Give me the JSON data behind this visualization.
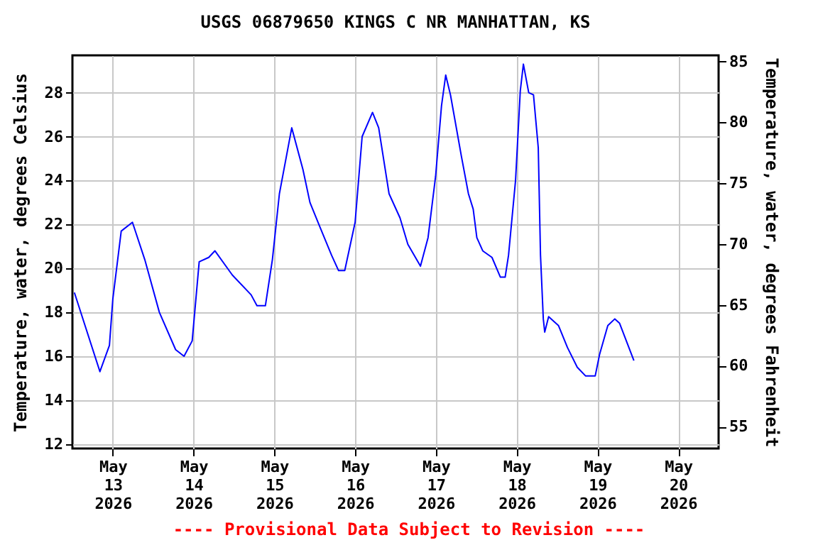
{
  "chart_data": {
    "type": "line",
    "title": "USGS 06879650 KINGS C NR MANHATTAN, KS",
    "ylabel": "Temperature, water, degrees Celsius",
    "y2label": "Temperature, water, degrees Fahrenheit",
    "annotations": [
      "---- Provisional Data Subject to Revision ----"
    ],
    "x": [
      "2026-05-12T12:35",
      "2026-05-12T20:10",
      "2026-05-12T23:00",
      "2026-05-13T00:00",
      "2026-05-13T02:30",
      "2026-05-13T05:50",
      "2026-05-13T09:30",
      "2026-05-13T13:50",
      "2026-05-13T18:40",
      "2026-05-13T21:10",
      "2026-05-13T23:35",
      "2026-05-14T01:40",
      "2026-05-14T04:30",
      "2026-05-14T06:20",
      "2026-05-14T11:30",
      "2026-05-14T17:05",
      "2026-05-14T18:50",
      "2026-05-14T21:20",
      "2026-05-14T23:25",
      "2026-05-15T01:30",
      "2026-05-15T05:10",
      "2026-05-15T08:30",
      "2026-05-15T10:35",
      "2026-05-15T13:30",
      "2026-05-15T17:00",
      "2026-05-15T19:05",
      "2026-05-15T20:55",
      "2026-05-16T00:00",
      "2026-05-16T02:05",
      "2026-05-16T05:10",
      "2026-05-16T07:00",
      "2026-05-16T10:05",
      "2026-05-16T13:20",
      "2026-05-16T15:40",
      "2026-05-16T19:25",
      "2026-05-16T21:40",
      "2026-05-16T23:55",
      "2026-05-17T01:40",
      "2026-05-17T02:55",
      "2026-05-17T04:20",
      "2026-05-17T07:35",
      "2026-05-17T09:40",
      "2026-05-17T11:05",
      "2026-05-17T12:10",
      "2026-05-17T13:55",
      "2026-05-17T16:40",
      "2026-05-17T19:10",
      "2026-05-17T20:35",
      "2026-05-17T21:35",
      "2026-05-17T23:40",
      "2026-05-18T01:05",
      "2026-05-18T02:00",
      "2026-05-18T03:35",
      "2026-05-18T05:00",
      "2026-05-18T06:25",
      "2026-05-18T07:05",
      "2026-05-18T07:55",
      "2026-05-18T08:20",
      "2026-05-18T09:30",
      "2026-05-18T12:25",
      "2026-05-18T15:05",
      "2026-05-18T18:00",
      "2026-05-18T20:30",
      "2026-05-18T23:20",
      "2026-05-19T00:40",
      "2026-05-19T03:05",
      "2026-05-19T05:10",
      "2026-05-19T06:35",
      "2026-05-19T10:50"
    ],
    "series": [
      {
        "color": "#0000ff",
        "values": [
          18.9,
          15.3,
          16.5,
          18.6,
          21.7,
          22.1,
          20.4,
          18.0,
          16.3,
          16.0,
          16.7,
          20.3,
          20.5,
          20.8,
          19.7,
          18.8,
          18.3,
          18.3,
          20.4,
          23.4,
          26.4,
          24.5,
          23.0,
          21.9,
          20.6,
          19.9,
          19.9,
          22.1,
          26.0,
          27.1,
          26.4,
          23.4,
          22.3,
          21.1,
          20.1,
          21.4,
          24.2,
          27.4,
          28.8,
          27.9,
          25.1,
          23.4,
          22.7,
          21.4,
          20.8,
          20.5,
          19.6,
          19.6,
          20.6,
          24.0,
          28.1,
          29.3,
          28.0,
          27.9,
          25.5,
          20.6,
          17.7,
          17.1,
          17.8,
          17.4,
          16.4,
          15.5,
          15.1,
          15.1,
          16.1,
          17.4,
          17.7,
          17.5,
          15.8
        ]
      }
    ],
    "xlim": [
      "2026-05-12T12:00",
      "2026-05-20T12:00"
    ],
    "xticks": [
      {
        "value": "2026-05-13",
        "label": "May 13 2026"
      },
      {
        "value": "2026-05-14",
        "label": "May 14 2026"
      },
      {
        "value": "2026-05-15",
        "label": "May 15 2026"
      },
      {
        "value": "2026-05-16",
        "label": "May 16 2026"
      },
      {
        "value": "2026-05-17",
        "label": "May 17 2026"
      },
      {
        "value": "2026-05-18",
        "label": "May 18 2026"
      },
      {
        "value": "2026-05-19",
        "label": "May 19 2026"
      },
      {
        "value": "2026-05-20",
        "label": "May 20 2026"
      }
    ],
    "ylim": [
      11.8,
      29.7
    ],
    "yticks": [
      12,
      14,
      16,
      18,
      20,
      22,
      24,
      26,
      28
    ],
    "y2lim": [
      53.2,
      85.5
    ],
    "y2ticks": [
      55,
      60,
      65,
      70,
      75,
      80,
      85
    ],
    "grid": true,
    "line_style": "solid",
    "marker": "none"
  }
}
